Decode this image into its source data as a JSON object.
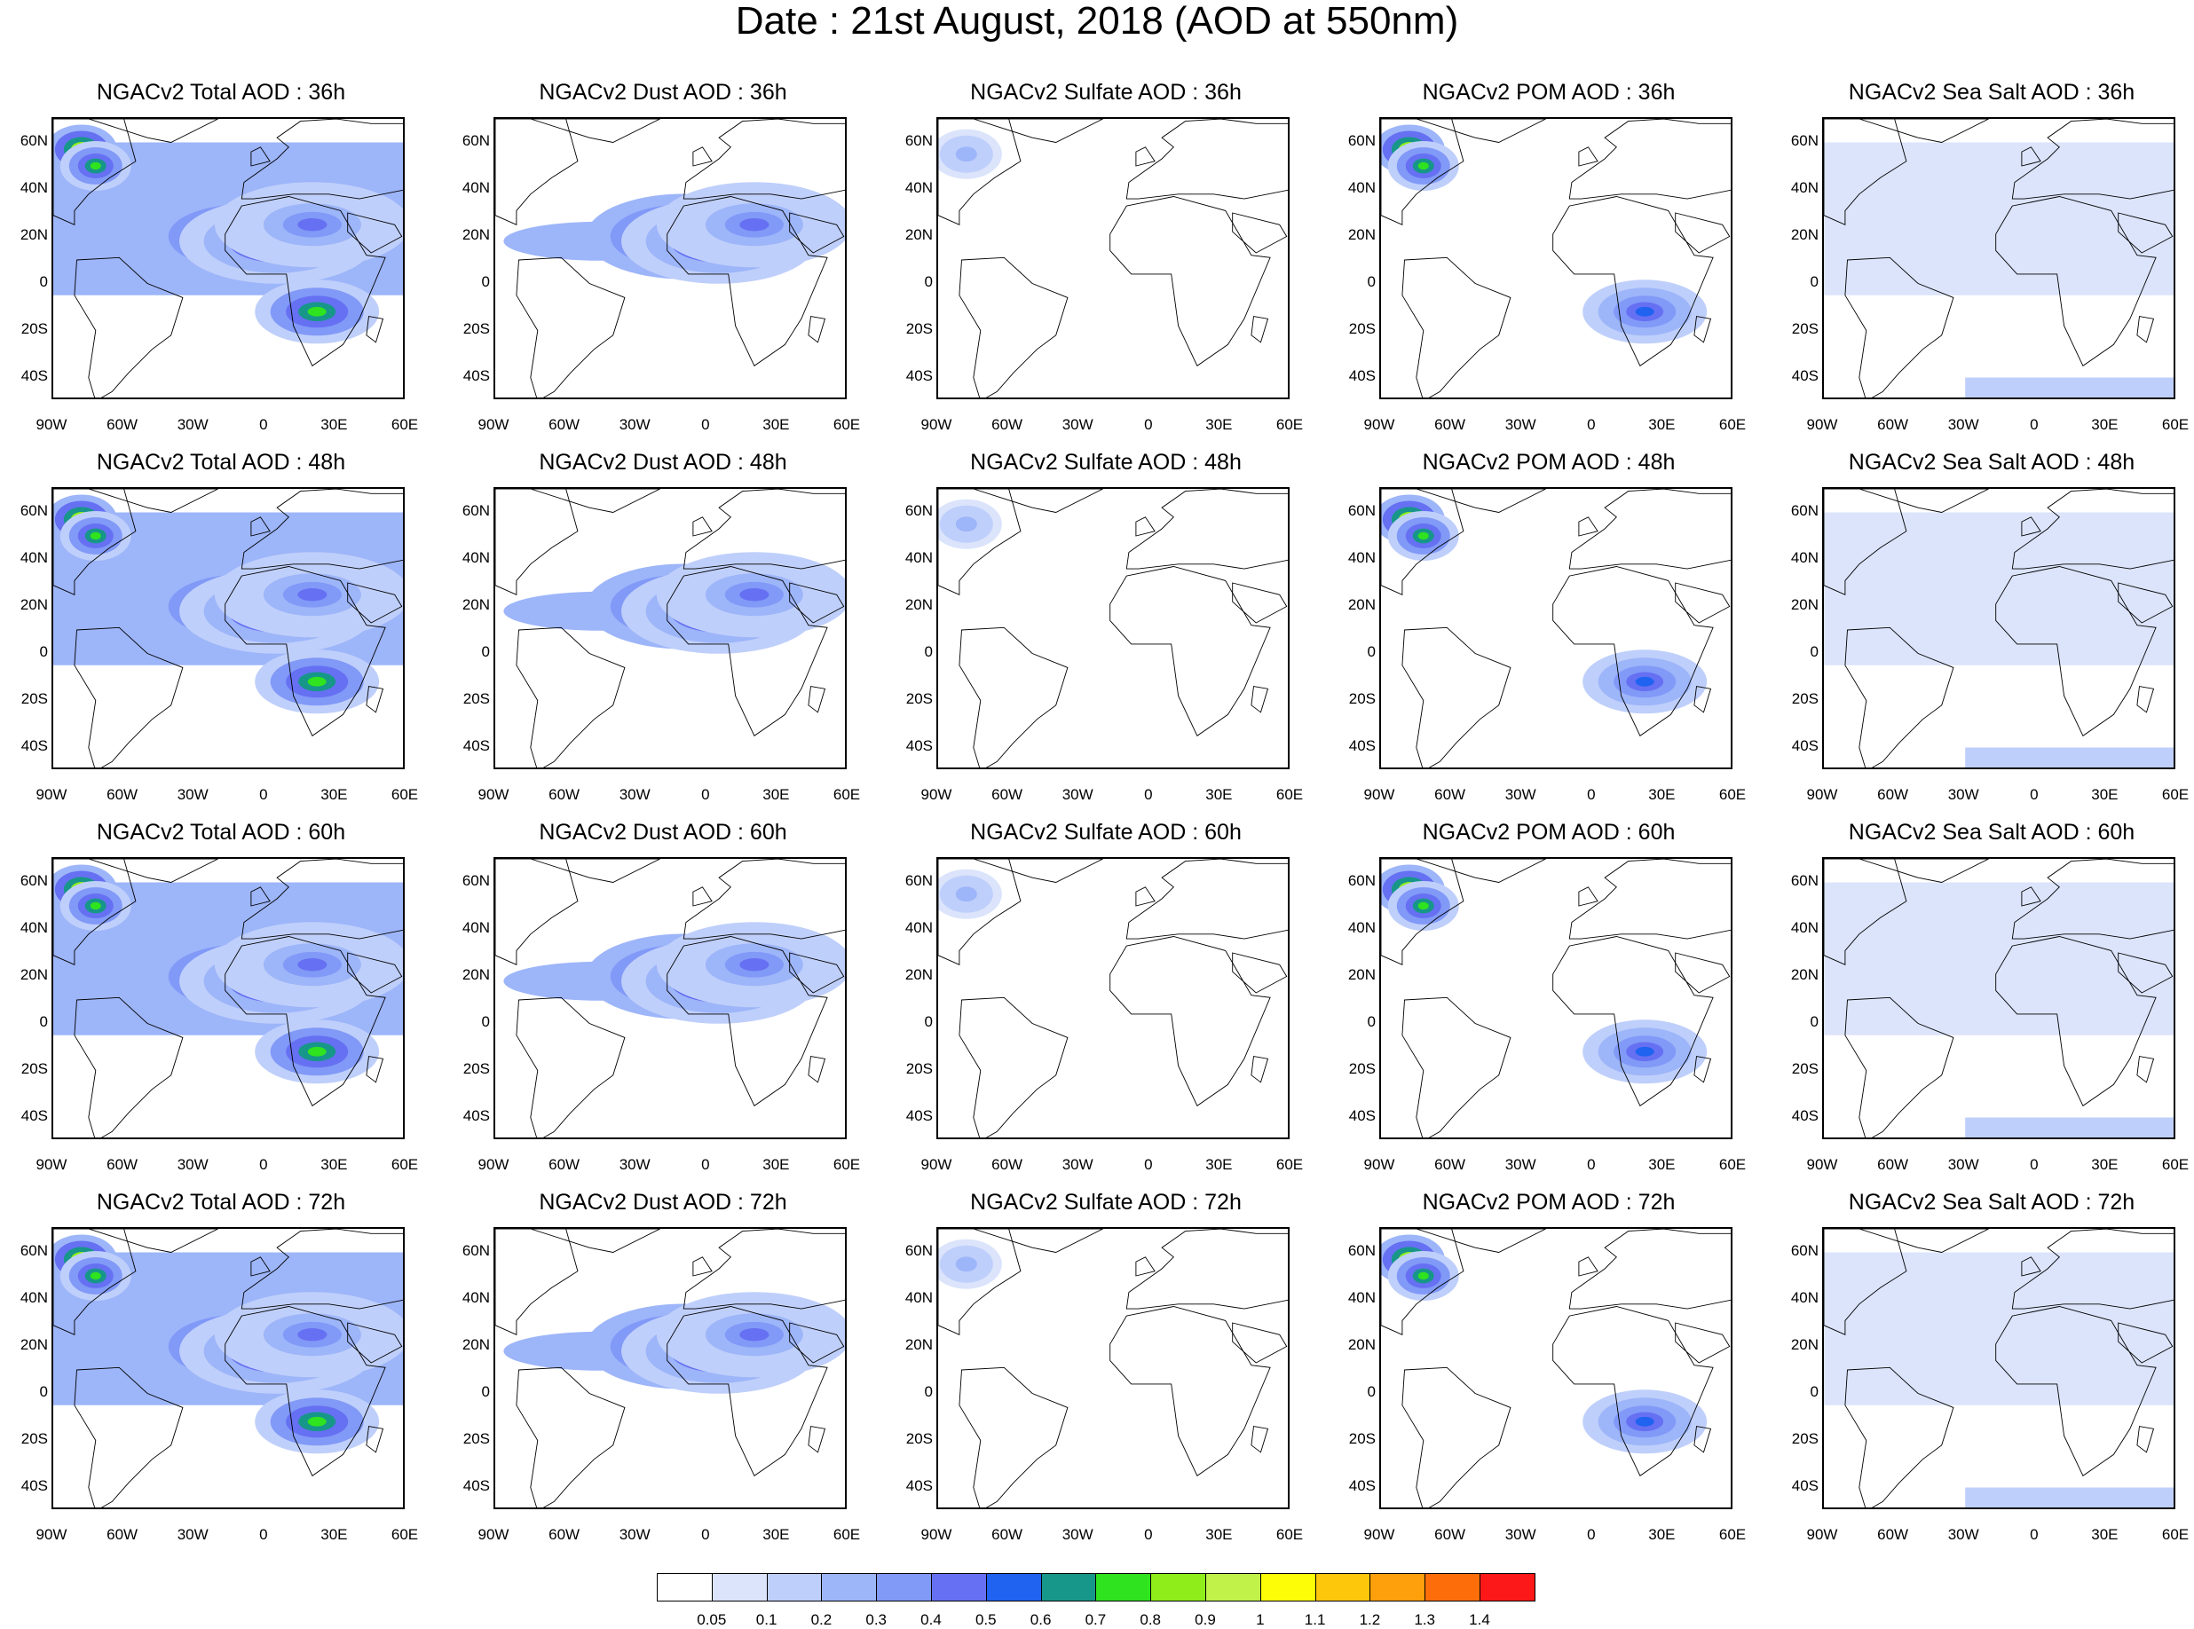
{
  "figure": {
    "title": "Date : 21st August, 2018 (AOD at 550nm)"
  },
  "axes": {
    "lat_labels": [
      "60N",
      "40N",
      "20N",
      "0",
      "20S",
      "40S"
    ],
    "lon_labels": [
      "90W",
      "60W",
      "30W",
      "0",
      "30E",
      "60E"
    ],
    "lat_values": [
      60,
      40,
      20,
      0,
      -20,
      -40
    ],
    "lon_values": [
      -90,
      -60,
      -30,
      0,
      30,
      60
    ],
    "lat_range": [
      -50,
      70
    ],
    "lon_range": [
      -90,
      60
    ]
  },
  "panels": [
    {
      "title": "NGACv2 Total AOD : 36h",
      "species": "total",
      "hour": 36
    },
    {
      "title": "NGACv2 Dust AOD : 36h",
      "species": "dust",
      "hour": 36
    },
    {
      "title": "NGACv2 Sulfate AOD : 36h",
      "species": "sulfate",
      "hour": 36
    },
    {
      "title": "NGACv2 POM AOD : 36h",
      "species": "pom",
      "hour": 36
    },
    {
      "title": "NGACv2 Sea Salt AOD : 36h",
      "species": "seasalt",
      "hour": 36
    },
    {
      "title": "NGACv2 Total AOD : 48h",
      "species": "total",
      "hour": 48
    },
    {
      "title": "NGACv2 Dust AOD : 48h",
      "species": "dust",
      "hour": 48
    },
    {
      "title": "NGACv2 Sulfate AOD : 48h",
      "species": "sulfate",
      "hour": 48
    },
    {
      "title": "NGACv2 POM AOD : 48h",
      "species": "pom",
      "hour": 48
    },
    {
      "title": "NGACv2 Sea Salt AOD : 48h",
      "species": "seasalt",
      "hour": 48
    },
    {
      "title": "NGACv2 Total AOD : 60h",
      "species": "total",
      "hour": 60
    },
    {
      "title": "NGACv2 Dust AOD : 60h",
      "species": "dust",
      "hour": 60
    },
    {
      "title": "NGACv2 Sulfate AOD : 60h",
      "species": "sulfate",
      "hour": 60
    },
    {
      "title": "NGACv2 POM AOD : 60h",
      "species": "pom",
      "hour": 60
    },
    {
      "title": "NGACv2 Sea Salt AOD : 60h",
      "species": "seasalt",
      "hour": 60
    },
    {
      "title": "NGACv2 Total AOD : 72h",
      "species": "total",
      "hour": 72
    },
    {
      "title": "NGACv2 Dust AOD : 72h",
      "species": "dust",
      "hour": 72
    },
    {
      "title": "NGACv2 Sulfate AOD : 72h",
      "species": "sulfate",
      "hour": 72
    },
    {
      "title": "NGACv2 POM AOD : 72h",
      "species": "pom",
      "hour": 72
    },
    {
      "title": "NGACv2 Sea Salt  AOD : 72h",
      "species": "seasalt",
      "hour": 72
    }
  ],
  "colorbar": {
    "labels": [
      "0.05",
      "0.1",
      "0.2",
      "0.3",
      "0.4",
      "0.5",
      "0.6",
      "0.7",
      "0.8",
      "0.9",
      "1",
      "1.1",
      "1.2",
      "1.3",
      "1.4"
    ],
    "colors": [
      "#ffffff",
      "#dbe4fb",
      "#bfcffb",
      "#9db5f9",
      "#8199f7",
      "#6670f2",
      "#1f63f0",
      "#17968a",
      "#2fe31f",
      "#8fee1a",
      "#c0f24a",
      "#fdfd07",
      "#fdc70b",
      "#fe9f0c",
      "#fd6e0b",
      "#fc1818"
    ]
  },
  "aerosol_features": {
    "total": {
      "smoke": [
        [
          -78,
          57,
          0.9
        ],
        [
          -72,
          50,
          0.7
        ]
      ],
      "dust": [
        [
          -10,
          20,
          0.8
        ],
        [
          5,
          18,
          0.6
        ],
        [
          20,
          25,
          0.4
        ]
      ],
      "africa": [
        [
          22,
          -12,
          0.7
        ]
      ],
      "background": 0.25
    },
    "dust": {
      "smoke": [],
      "dust": [
        [
          -10,
          20,
          0.8
        ],
        [
          5,
          18,
          0.6
        ],
        [
          20,
          25,
          0.4
        ]
      ],
      "africa": [],
      "background": 0.0
    },
    "sulfate": {
      "smoke": [
        [
          -78,
          55,
          0.25
        ]
      ],
      "dust": [],
      "africa": [],
      "background": 0.0
    },
    "pom": {
      "smoke": [
        [
          -78,
          57,
          0.9
        ],
        [
          -72,
          50,
          0.7
        ]
      ],
      "dust": [],
      "africa": [
        [
          22,
          -12,
          0.5
        ]
      ],
      "background": 0.0
    },
    "seasalt": {
      "smoke": [],
      "dust": [],
      "africa": [],
      "background": 0.05
    }
  }
}
